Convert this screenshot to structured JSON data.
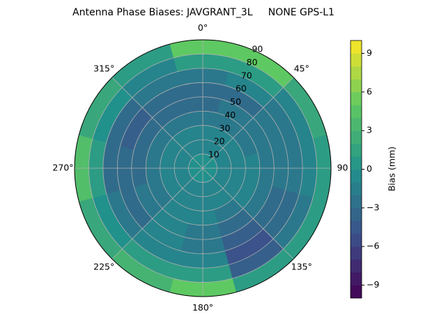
{
  "chart_data": {
    "type": "polar_contour",
    "title": "Antenna Phase Biases: JAVGRANT_3L     NONE GPS-L1",
    "theta_direction": "clockwise",
    "theta_zero": "N",
    "thetaticks": [
      {
        "value": 0,
        "label": "0°"
      },
      {
        "value": 45,
        "label": "45°"
      },
      {
        "value": 90,
        "label": "90"
      },
      {
        "value": 135,
        "label": "135°"
      },
      {
        "value": 180,
        "label": "180°"
      },
      {
        "value": 225,
        "label": "225°"
      },
      {
        "value": 270,
        "label": "270°"
      },
      {
        "value": 315,
        "label": "315°"
      }
    ],
    "rlim": [
      0,
      90
    ],
    "rticks": [
      10,
      20,
      30,
      40,
      50,
      60,
      70,
      80,
      90
    ],
    "grid": true,
    "zenith": [
      5,
      15,
      25,
      35,
      45,
      55,
      65,
      75,
      85
    ],
    "azimuth": [
      0,
      30,
      60,
      90,
      120,
      150,
      180,
      210,
      240,
      270,
      300,
      330
    ],
    "values": [
      [
        0,
        0,
        0,
        0,
        0,
        0,
        0,
        0,
        0,
        0,
        0,
        0
      ],
      [
        -1,
        -1,
        -1,
        -1,
        -1,
        -1,
        -1,
        -1,
        -1,
        -1,
        -1,
        -1
      ],
      [
        -1,
        -1,
        -1,
        -1,
        -1,
        -1,
        -1,
        -1,
        -1,
        -1,
        -1,
        -1
      ],
      [
        -2,
        -2,
        -2,
        -1,
        -1,
        -2,
        -1,
        -1,
        -2,
        -2,
        -2,
        -2
      ],
      [
        -3,
        -2,
        -2,
        -2,
        -2,
        -3,
        -2,
        -1,
        -2,
        -3,
        -3,
        -3
      ],
      [
        -3,
        -3,
        -2,
        -2,
        -3,
        -4,
        -2,
        -1,
        -3,
        -3,
        -4,
        -3
      ],
      [
        -2,
        -1,
        -2,
        -2,
        -3,
        -5,
        -1,
        -1,
        -2,
        -3,
        -3,
        -2
      ],
      [
        1,
        1,
        -1,
        -1,
        -2,
        -4,
        1,
        1,
        0,
        1,
        0,
        -1
      ],
      [
        5,
        5,
        2,
        1,
        1,
        1,
        5,
        3,
        2,
        4,
        2,
        1
      ]
    ],
    "colormap": "viridis",
    "clim": [
      -10,
      10
    ],
    "levels": 20,
    "colorbar_label": "Bias (mm)",
    "colorbar_ticks": [
      {
        "value": -9,
        "label": "−9"
      },
      {
        "value": -6,
        "label": "−6"
      },
      {
        "value": -3,
        "label": "−3"
      },
      0,
      3,
      6,
      9
    ]
  }
}
